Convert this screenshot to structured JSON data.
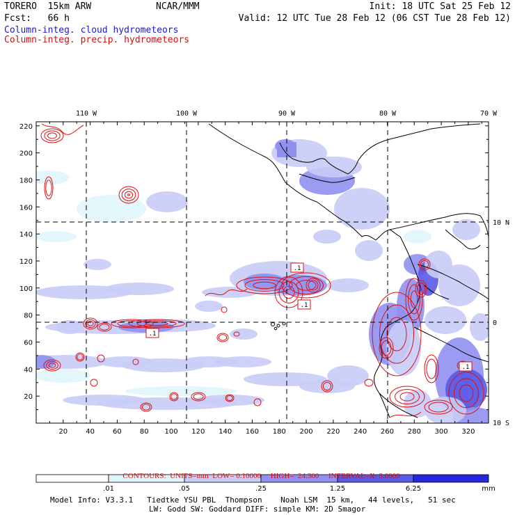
{
  "header": {
    "model_title": "TORERO  15km ARW",
    "org": "NCAR/MMM",
    "init": "Init: 18 UTC Sat 25 Feb 12",
    "fcst": "Fcst:   66 h",
    "valid": "Valid: 12 UTC Tue 28 Feb 12 (06 CST Tue 28 Feb 12)",
    "legend_cloud": "Column-integ. cloud hydrometeors",
    "legend_precip": "Column-integ. precip. hydrometeors"
  },
  "map": {
    "longitude_labels": [
      "110 W",
      "100 W",
      "90 W",
      "80 W",
      "70 W"
    ],
    "latitude_labels": [
      "10 N",
      "0",
      "10 S"
    ],
    "x_grid_labels": [
      "20",
      "40",
      "60",
      "80",
      "100",
      "120",
      "140",
      "160",
      "180",
      "200",
      "220",
      "240",
      "260",
      "280",
      "300",
      "320"
    ],
    "y_grid_labels": [
      "20",
      "40",
      "60",
      "80",
      "100",
      "120",
      "140",
      "160",
      "180",
      "200",
      "220"
    ],
    "contour_label": ".1",
    "colors": {
      "precip_contour": "#dd1010",
      "grid": "#000000"
    }
  },
  "contours": {
    "units_label": "CONTOURS:  UNITS=mm  LOW= 0.10000",
    "high_label": "HIGH=  24.300",
    "interval_label": "INTERVAL=X  3.0000"
  },
  "colorbar": {
    "tick_labels": [
      ".01",
      ".05",
      ".25",
      "1.25",
      "6.25"
    ],
    "units": "mm",
    "colors": [
      "#ffffff",
      "#dff5fb",
      "#c9ccf6",
      "#8f90ef",
      "#5a5ae6",
      "#2727de"
    ]
  },
  "footer": {
    "line1": "Model Info: V3.3.1   Tiedtke YSU PBL  Thompson    Noah LSM  15 km,   44 levels,   51 sec",
    "line2": "LW: Godd SW: Goddard DIFF: simple KM: 2D Smagor"
  }
}
